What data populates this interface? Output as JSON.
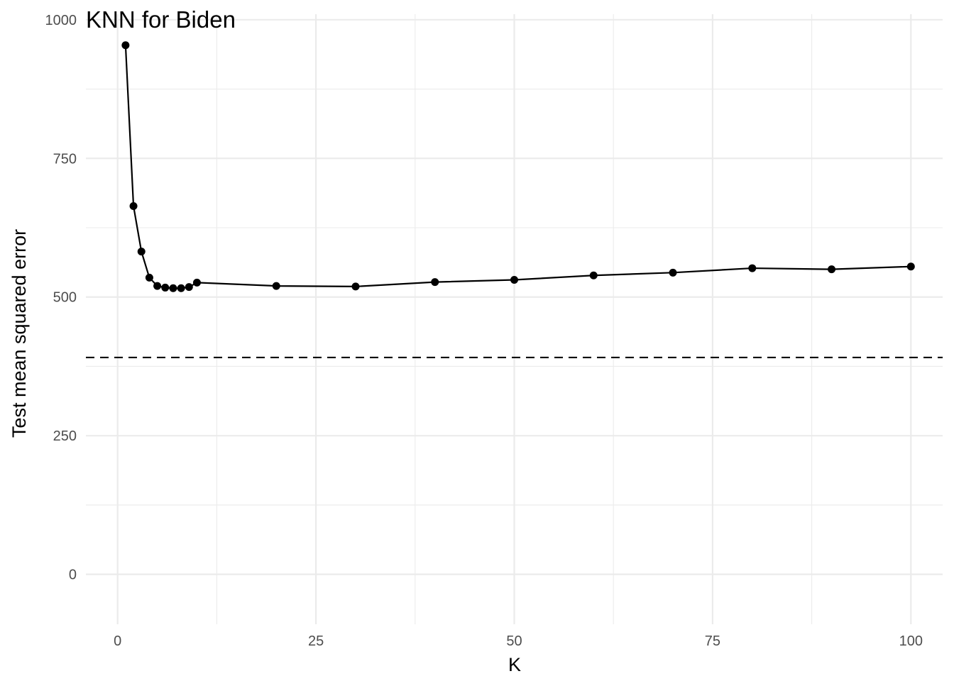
{
  "chart_data": {
    "type": "line",
    "title": "KNN for Biden",
    "xlabel": "K",
    "ylabel": "Test mean squared error",
    "xlim": [
      -4,
      104
    ],
    "ylim": [
      -90,
      1010
    ],
    "x_ticks": [
      0,
      25,
      50,
      75,
      100
    ],
    "x_minor_ticks": [
      12.5,
      37.5,
      62.5,
      87.5
    ],
    "y_ticks": [
      0,
      250,
      500,
      750,
      1000
    ],
    "y_minor_ticks": [
      125,
      375,
      625,
      875
    ],
    "grid": true,
    "legend": "none",
    "colors": {
      "line": "#000000",
      "grid": "#ebebeb",
      "background": "#ffffff"
    },
    "series": [
      {
        "x": [
          1,
          2,
          3,
          4,
          5,
          6,
          7,
          8,
          9,
          10,
          20,
          30,
          40,
          50,
          60,
          70,
          80,
          90,
          100
        ],
        "y": [
          954,
          664,
          582,
          535,
          520,
          517,
          516,
          516,
          518,
          526,
          520,
          519,
          527,
          531,
          539,
          544,
          552,
          550,
          555
        ]
      }
    ],
    "reference_line": {
      "orientation": "horizontal",
      "y": 391,
      "style": "dashed"
    }
  }
}
